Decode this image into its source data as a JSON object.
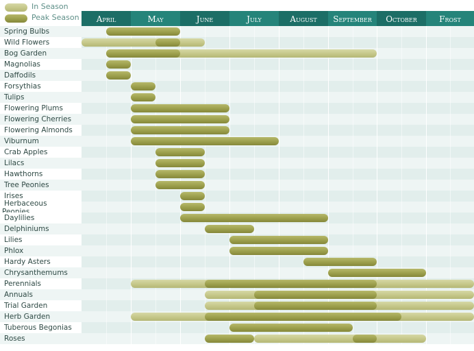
{
  "legend": {
    "in_season": "In Season",
    "peak_season": "Peak Season"
  },
  "colors": {
    "header": "#1c6e66",
    "header_alt": "#25847a",
    "in_season": "#c8ca8c",
    "peak_season": "#9b9e4b",
    "label_text": "#2f4a45"
  },
  "chart_data": {
    "type": "gantt",
    "columns": [
      "April",
      "May",
      "June",
      "July",
      "August",
      "September",
      "October",
      "Frost"
    ],
    "rows": [
      {
        "label": "Spring Bulbs",
        "in_season": [],
        "peak": [
          [
            0.5,
            2
          ]
        ]
      },
      {
        "label": "Wild Flowers",
        "in_season": [
          [
            0,
            2.5
          ]
        ],
        "peak": [
          [
            1.5,
            2
          ]
        ]
      },
      {
        "label": "Bog Garden",
        "in_season": [
          [
            0.5,
            6
          ]
        ],
        "peak": [
          [
            0.5,
            2
          ]
        ]
      },
      {
        "label": "Magnolias",
        "in_season": [],
        "peak": [
          [
            0.5,
            1
          ]
        ]
      },
      {
        "label": "Daffodils",
        "in_season": [],
        "peak": [
          [
            0.5,
            1
          ]
        ]
      },
      {
        "label": "Forsythias",
        "in_season": [],
        "peak": [
          [
            1,
            1.5
          ]
        ]
      },
      {
        "label": "Tulips",
        "in_season": [],
        "peak": [
          [
            1,
            1.5
          ]
        ]
      },
      {
        "label": "Flowering Plums",
        "in_season": [],
        "peak": [
          [
            1,
            3
          ]
        ]
      },
      {
        "label": "Flowering Cherries",
        "in_season": [],
        "peak": [
          [
            1,
            3
          ]
        ]
      },
      {
        "label": "Flowering Almonds",
        "in_season": [],
        "peak": [
          [
            1,
            3
          ]
        ]
      },
      {
        "label": "Viburnum",
        "in_season": [],
        "peak": [
          [
            1,
            4
          ]
        ]
      },
      {
        "label": "Crab Apples",
        "in_season": [],
        "peak": [
          [
            1.5,
            2.5
          ]
        ]
      },
      {
        "label": "Lilacs",
        "in_season": [],
        "peak": [
          [
            1.5,
            2.5
          ]
        ]
      },
      {
        "label": "Hawthorns",
        "in_season": [],
        "peak": [
          [
            1.5,
            2.5
          ]
        ]
      },
      {
        "label": "Tree Peonies",
        "in_season": [],
        "peak": [
          [
            1.5,
            2.5
          ]
        ]
      },
      {
        "label": "Irises",
        "in_season": [],
        "peak": [
          [
            2,
            2.5
          ]
        ]
      },
      {
        "label": "Herbaceous Peonies",
        "label_lines": [
          "Herbaceous",
          "Peonies"
        ],
        "in_season": [],
        "peak": [
          [
            2,
            2.5
          ]
        ]
      },
      {
        "label": "Daylilies",
        "in_season": [],
        "peak": [
          [
            2,
            5
          ]
        ]
      },
      {
        "label": "Delphiniums",
        "in_season": [],
        "peak": [
          [
            2.5,
            3.5
          ]
        ]
      },
      {
        "label": "Lilies",
        "in_season": [],
        "peak": [
          [
            3,
            5
          ]
        ]
      },
      {
        "label": "Phlox",
        "in_season": [],
        "peak": [
          [
            3,
            5
          ]
        ]
      },
      {
        "label": "Hardy Asters",
        "in_season": [],
        "peak": [
          [
            4.5,
            6
          ]
        ]
      },
      {
        "label": "Chrysanthemums",
        "in_season": [],
        "peak": [
          [
            5,
            7
          ]
        ]
      },
      {
        "label": "Perennials",
        "in_season": [
          [
            1,
            8
          ]
        ],
        "peak": [
          [
            2.5,
            6
          ]
        ]
      },
      {
        "label": "Annuals",
        "in_season": [
          [
            2.5,
            8
          ]
        ],
        "peak": [
          [
            3.5,
            6
          ]
        ]
      },
      {
        "label": "Trial Garden",
        "in_season": [
          [
            2.5,
            8
          ]
        ],
        "peak": [
          [
            3.5,
            6
          ]
        ]
      },
      {
        "label": "Herb Garden",
        "in_season": [
          [
            1,
            8
          ]
        ],
        "peak": [
          [
            2.5,
            6.5
          ]
        ]
      },
      {
        "label": "Tuberous Begonias",
        "in_season": [],
        "peak": [
          [
            3,
            5.5
          ]
        ]
      },
      {
        "label": "Roses",
        "in_season": [
          [
            3.5,
            7
          ]
        ],
        "peak": [
          [
            2.5,
            3.5
          ],
          [
            5.5,
            6
          ]
        ]
      }
    ]
  }
}
